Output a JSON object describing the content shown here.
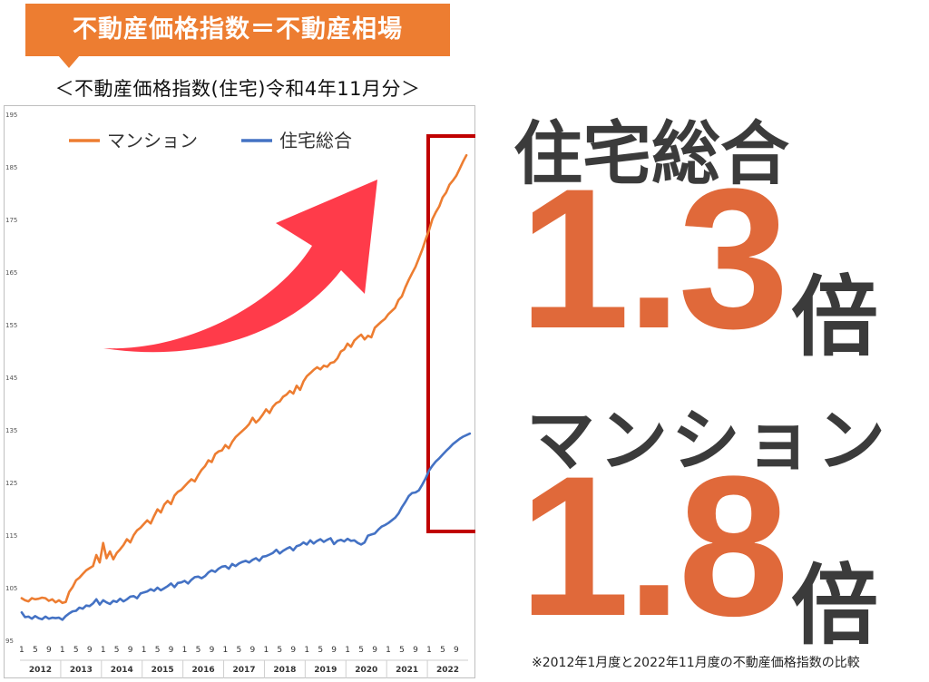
{
  "header": {
    "banner_title": "不動産価格指数＝不動産相場",
    "subtitle": "＜不動産価格指数(住宅)令和4年11月分＞"
  },
  "right_panel": {
    "housing_label": "住宅総合",
    "housing_value": "1.3",
    "housing_unit": "倍",
    "condo_label": "マンション",
    "condo_value": "1.8",
    "condo_unit": "倍",
    "footnote": "※2012年1月度と2022年11月度の不動産価格指数の比較"
  },
  "colors": {
    "banner": "#ed7d31",
    "condo_line": "#ed7d31",
    "housing_line": "#4472c4",
    "highlight_box": "#c00000",
    "arrow": "#ff3b4a",
    "big_number": "#e0693a",
    "dark_text": "#3b3b3b"
  },
  "chart_data": {
    "type": "line",
    "ylim": [
      95,
      195
    ],
    "yticks": [
      95,
      105,
      115,
      125,
      135,
      145,
      155,
      165,
      175,
      185,
      195
    ],
    "x_month_ticks": [
      "1",
      "5",
      "9"
    ],
    "years": [
      "2012",
      "2013",
      "2014",
      "2015",
      "2016",
      "2017",
      "2018",
      "2019",
      "2020",
      "2021",
      "2022"
    ],
    "legend": [
      "マンション",
      "住宅総合"
    ],
    "legend_position": "top-left",
    "series": [
      {
        "name": "マンション",
        "color": "#ed7d31",
        "x_start": "2012-01",
        "values": [
          103,
          102.6,
          102.4,
          103,
          102.8,
          102.9,
          103.1,
          103,
          102.5,
          102.8,
          102.2,
          102.6,
          102.1,
          102.3,
          104.2,
          105.1,
          106.4,
          106.9,
          107.6,
          108.3,
          108.7,
          109.1,
          111.2,
          109.8,
          113.5,
          110.6,
          111.9,
          110.4,
          111.6,
          112.3,
          113.1,
          114.2,
          113.6,
          115.0,
          115.9,
          116.4,
          117.1,
          117.8,
          117.2,
          118.6,
          119.9,
          119.3,
          120.8,
          121.5,
          120.9,
          122.5,
          123.2,
          123.6,
          124.3,
          125.0,
          125.6,
          125.2,
          126.4,
          127.4,
          128.1,
          129.2,
          128.9,
          130.4,
          130.9,
          131.1,
          132.1,
          131.5,
          132.7,
          133.6,
          134.2,
          134.8,
          135.4,
          136.1,
          137.3,
          136.4,
          137.0,
          137.9,
          138.9,
          138.2,
          139.4,
          140.1,
          140.4,
          141.3,
          141.7,
          142.4,
          141.9,
          143.4,
          142.6,
          144.2,
          145.2,
          145.8,
          146.4,
          146.9,
          146.5,
          147.2,
          147.0,
          147.7,
          147.9,
          148.6,
          149.9,
          150.3,
          151.4,
          150.8,
          152.0,
          152.6,
          153.1,
          152.2,
          152.9,
          152.6,
          154.4,
          155.0,
          155.6,
          156.1,
          157.0,
          157.6,
          158.2,
          159.7,
          160.4,
          162.1,
          163.5,
          164.8,
          166.0,
          167.6,
          169.3,
          171.2,
          173.0,
          175.1,
          176.4,
          177.5,
          179.2,
          180.1,
          181.6,
          182.4,
          183.3,
          184.6,
          186.0,
          187.2
        ]
      },
      {
        "name": "住宅総合",
        "color": "#4472c4",
        "x_start": "2012-01",
        "values": [
          100.3,
          99.4,
          99.5,
          99.1,
          99.6,
          99.2,
          99.0,
          99.5,
          99.1,
          99.3,
          99.2,
          99.3,
          98.9,
          99.6,
          100.1,
          100.5,
          100.6,
          101.2,
          101.0,
          101.6,
          101.5,
          102.0,
          102.8,
          101.8,
          102.6,
          102.2,
          101.9,
          102.5,
          102.3,
          102.9,
          102.4,
          102.8,
          103.3,
          103.4,
          103.0,
          103.9,
          104.1,
          104.3,
          104.7,
          104.4,
          105.0,
          104.5,
          104.9,
          105.3,
          105.8,
          105.1,
          105.9,
          106.0,
          106.3,
          105.8,
          106.5,
          107.0,
          107.1,
          106.8,
          107.2,
          107.9,
          108.3,
          108.0,
          108.6,
          109.0,
          109.1,
          108.6,
          109.5,
          109.1,
          109.6,
          109.9,
          110.1,
          109.8,
          110.3,
          110.6,
          110.1,
          110.9,
          111.0,
          111.3,
          111.6,
          112.2,
          111.5,
          112.0,
          112.4,
          112.7,
          112.1,
          112.9,
          113.1,
          113.6,
          113.2,
          114.0,
          113.4,
          113.9,
          114.2,
          113.7,
          114.1,
          114.4,
          113.3,
          113.9,
          114.1,
          113.8,
          114.3,
          113.9,
          114.0,
          113.5,
          113.2,
          113.6,
          114.9,
          115.1,
          115.3,
          116.0,
          116.6,
          116.9,
          117.3,
          117.8,
          118.3,
          119.1,
          120.3,
          121.3,
          122.4,
          123.0,
          123.1,
          123.5,
          124.6,
          125.8,
          127.3,
          128.2,
          129.0,
          129.6,
          130.3,
          131.0,
          131.6,
          132.3,
          132.8,
          133.3,
          133.7,
          134.0,
          134.3
        ]
      }
    ]
  }
}
